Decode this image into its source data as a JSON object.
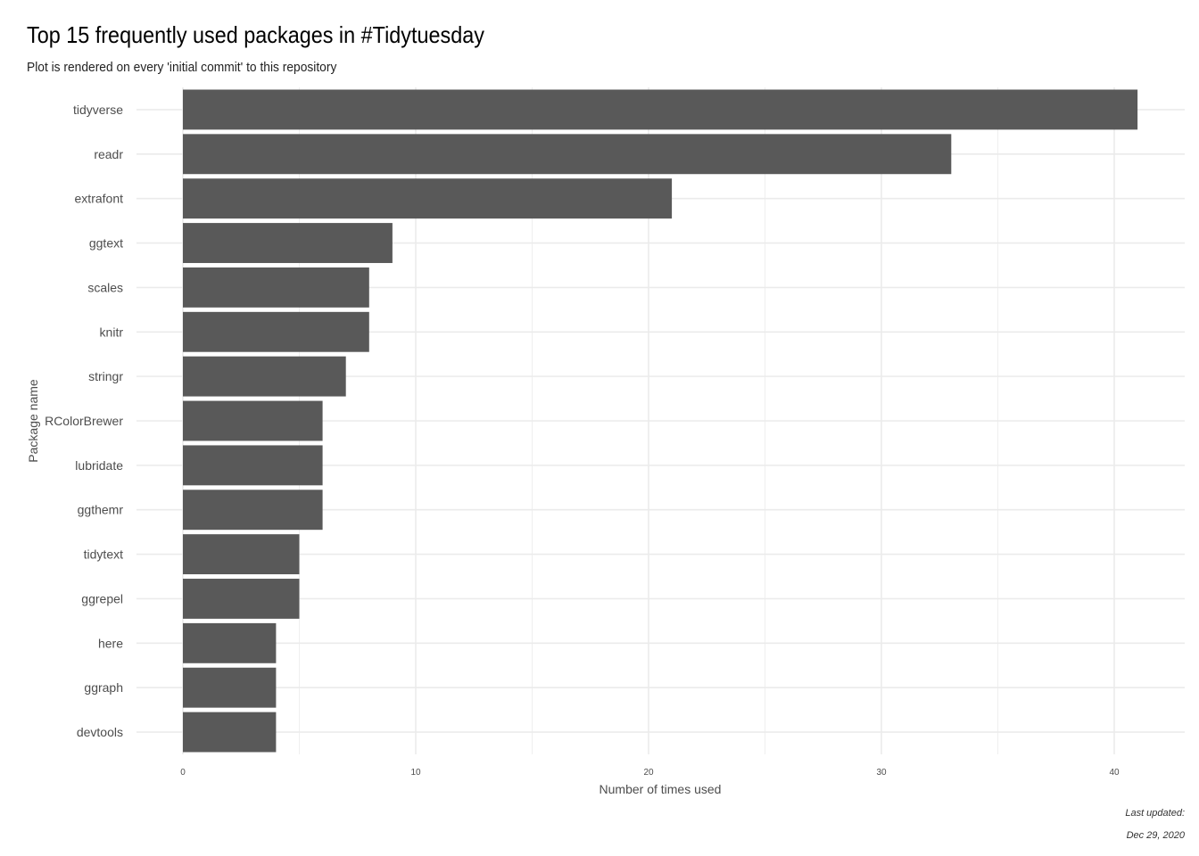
{
  "chart_data": {
    "type": "bar",
    "orientation": "horizontal",
    "title": "Top 15 frequently used packages in #Tidytuesday",
    "subtitle": "Plot is rendered on every 'initial commit' to this repository",
    "xlabel": "Number of times used",
    "ylabel": "Package name",
    "caption": [
      "Last updated:",
      "Dec 29, 2020"
    ],
    "categories": [
      "tidyverse",
      "readr",
      "extrafont",
      "ggtext",
      "scales",
      "knitr",
      "stringr",
      "RColorBrewer",
      "lubridate",
      "ggthemr",
      "tidytext",
      "ggrepel",
      "here",
      "ggraph",
      "devtools"
    ],
    "values": [
      41,
      33,
      21,
      9,
      8,
      8,
      7,
      6,
      6,
      6,
      5,
      5,
      4,
      4,
      4
    ],
    "xlim": [
      0,
      43
    ],
    "xticks": [
      0,
      10,
      20,
      30,
      40
    ],
    "grid": true,
    "bar_color": "#595959",
    "grid_color": "#ebebeb"
  }
}
